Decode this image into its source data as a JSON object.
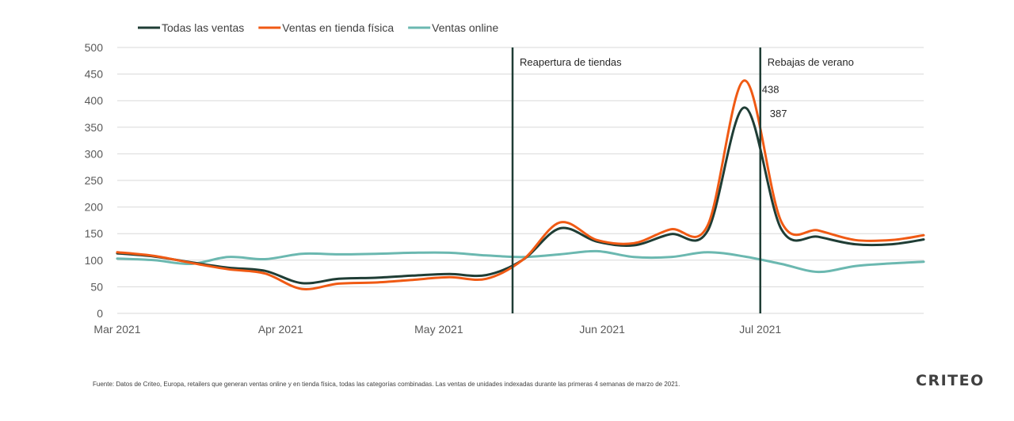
{
  "colors": {
    "todas": "#1f3d35",
    "tienda": "#f05a14",
    "online": "#6bb8b0",
    "grid": "#d9d9d9",
    "brand": "#3fb3a6"
  },
  "footer": "Fuente: Datos de Criteo, Europa, retailers que generan ventas online y en tienda física, todas las categorías combinadas. Las ventas de unidades indexadas durante las primeras 4 semanas de marzo de 2021.",
  "logo": "CRITEO",
  "chart_data": {
    "type": "line",
    "title": "",
    "xlabel": "",
    "ylabel": "",
    "ylim": [
      0,
      500
    ],
    "yticks": [
      0,
      50,
      100,
      150,
      200,
      250,
      300,
      350,
      400,
      450,
      500
    ],
    "grid": true,
    "legend_position": "top-left",
    "xlim": [
      "2021-03-01",
      "2021-08-01"
    ],
    "xticks": [
      {
        "date": "2021-03-01",
        "label": "Mar 2021"
      },
      {
        "date": "2021-04-01",
        "label": "Apr 2021"
      },
      {
        "date": "2021-05-01",
        "label": "May 2021"
      },
      {
        "date": "2021-06-01",
        "label": "Jun 2021"
      },
      {
        "date": "2021-07-01",
        "label": "Jul 2021"
      }
    ],
    "x": [
      "2021-03-01",
      "2021-03-08",
      "2021-03-15",
      "2021-03-22",
      "2021-03-29",
      "2021-04-05",
      "2021-04-12",
      "2021-04-19",
      "2021-04-26",
      "2021-05-03",
      "2021-05-10",
      "2021-05-17",
      "2021-05-24",
      "2021-05-31",
      "2021-06-07",
      "2021-06-14",
      "2021-06-21",
      "2021-06-28",
      "2021-07-05",
      "2021-07-12",
      "2021-07-19",
      "2021-07-26",
      "2021-08-01"
    ],
    "series": [
      {
        "name": "Todas las ventas",
        "color": "#1f3d35",
        "values": [
          113,
          107,
          96,
          86,
          80,
          57,
          65,
          67,
          71,
          74,
          72,
          101,
          160,
          135,
          128,
          149,
          155,
          387,
          158,
          144,
          130,
          130,
          139
        ]
      },
      {
        "name": "Ventas en tienda física",
        "color": "#f05a14",
        "values": [
          115,
          108,
          95,
          83,
          75,
          46,
          56,
          58,
          63,
          68,
          65,
          101,
          171,
          138,
          132,
          158,
          165,
          438,
          172,
          156,
          138,
          138,
          147
        ]
      },
      {
        "name": "Ventas online",
        "color": "#6bb8b0",
        "values": [
          103,
          100,
          93,
          106,
          102,
          112,
          111,
          112,
          114,
          114,
          109,
          106,
          111,
          117,
          106,
          106,
          115,
          107,
          93,
          78,
          89,
          94,
          97
        ]
      }
    ],
    "annotations": [
      {
        "date": "2021-05-15",
        "label": "Reapertura de tiendas"
      },
      {
        "date": "2021-07-01",
        "label": "Rebajas de verano"
      }
    ],
    "data_labels": [
      {
        "series": "Ventas en tienda física",
        "date": "2021-06-28",
        "value": 438,
        "text": "438"
      },
      {
        "series": "Todas las ventas",
        "date": "2021-06-28",
        "value": 387,
        "text": "387"
      }
    ]
  }
}
